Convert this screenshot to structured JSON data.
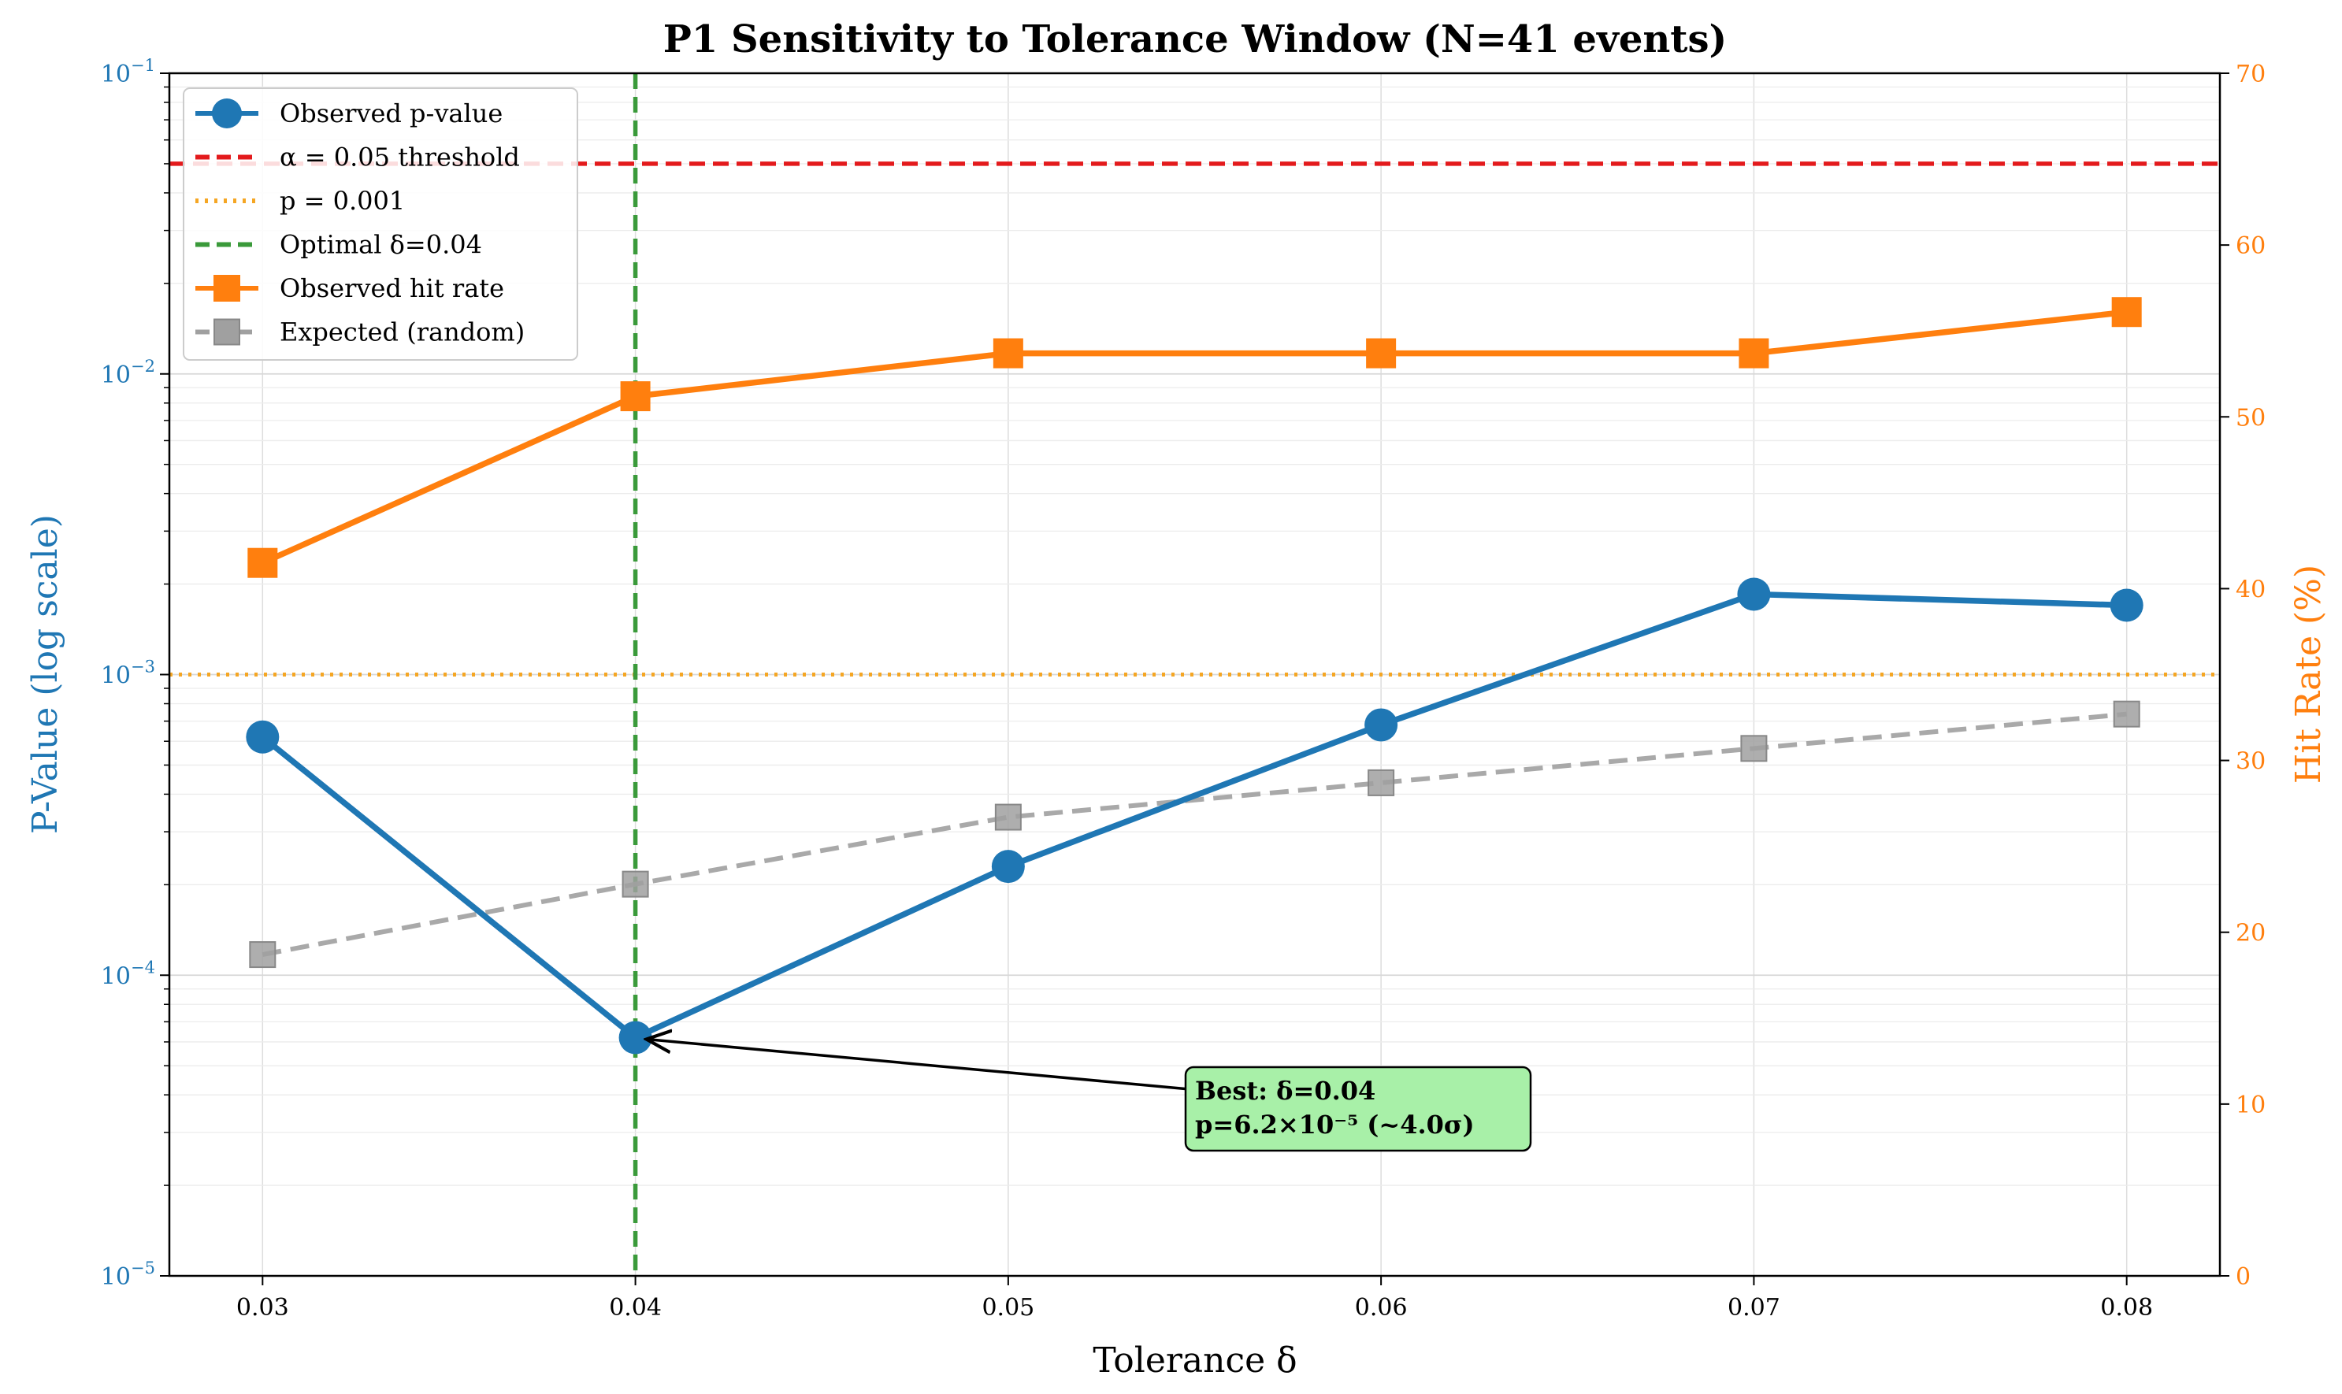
{
  "chart_data": {
    "type": "line",
    "title": "P1 Sensitivity to Tolerance Window (N=41 events)",
    "xlabel": "Tolerance δ",
    "ylabel_left": "P-Value (log scale)",
    "ylabel_right": "Hit Rate (%)",
    "x": [
      0.03,
      0.04,
      0.05,
      0.06,
      0.07,
      0.08
    ],
    "x_tick_labels": [
      "0.03",
      "0.04",
      "0.05",
      "0.06",
      "0.07",
      "0.08"
    ],
    "xlim": [
      0.0275,
      0.0825
    ],
    "y_left_scale": "log",
    "y_left_lim": [
      1e-05,
      0.1
    ],
    "y_left_ticks": [
      {
        "value": 0.1,
        "base": "10",
        "exp": "−1"
      },
      {
        "value": 0.01,
        "base": "10",
        "exp": "−2"
      },
      {
        "value": 0.001,
        "base": "10",
        "exp": "−3"
      },
      {
        "value": 0.0001,
        "base": "10",
        "exp": "−4"
      },
      {
        "value": 1e-05,
        "base": "10",
        "exp": "−5"
      }
    ],
    "y_right_lim": [
      0,
      70
    ],
    "y_right_ticks": [
      "0",
      "10",
      "20",
      "30",
      "40",
      "50",
      "60",
      "70"
    ],
    "grid": true,
    "legend_position": "top-left",
    "series": [
      {
        "name": "Observed p-value",
        "axis": "left",
        "color": "#1f77b4",
        "marker": "circle",
        "style": "solid",
        "values": [
          0.00062,
          6.2e-05,
          0.00023,
          0.00068,
          0.00185,
          0.0017
        ]
      },
      {
        "name": "Observed hit rate",
        "axis": "right",
        "color": "#ff7f0e",
        "marker": "square",
        "style": "solid",
        "values": [
          41.5,
          51.2,
          53.7,
          53.7,
          53.7,
          56.1
        ]
      },
      {
        "name": "Expected (random)",
        "axis": "right",
        "color": "#a0a0a0",
        "marker": "square",
        "style": "dashed",
        "values": [
          18.7,
          22.8,
          26.7,
          28.7,
          30.7,
          32.7
        ]
      }
    ],
    "reference_lines": [
      {
        "name": "α = 0.05 threshold",
        "axis": "left",
        "orientation": "horizontal",
        "value": 0.05,
        "color": "#e31a1c",
        "style": "dashed"
      },
      {
        "name": "p = 0.001",
        "axis": "left",
        "orientation": "horizontal",
        "value": 0.001,
        "color": "#f5a623",
        "style": "dotted"
      },
      {
        "name": "Optimal δ=0.04",
        "axis": "x",
        "orientation": "vertical",
        "value": 0.04,
        "color": "#3a9a3a",
        "style": "dashed"
      }
    ],
    "annotation": {
      "line1": "Best: δ=0.04",
      "line2": "p=6.2×10⁻⁵ (~4.0σ)",
      "target_x": 0.04,
      "target_y": 6.2e-05,
      "box_color": "#a8f0a8"
    }
  }
}
